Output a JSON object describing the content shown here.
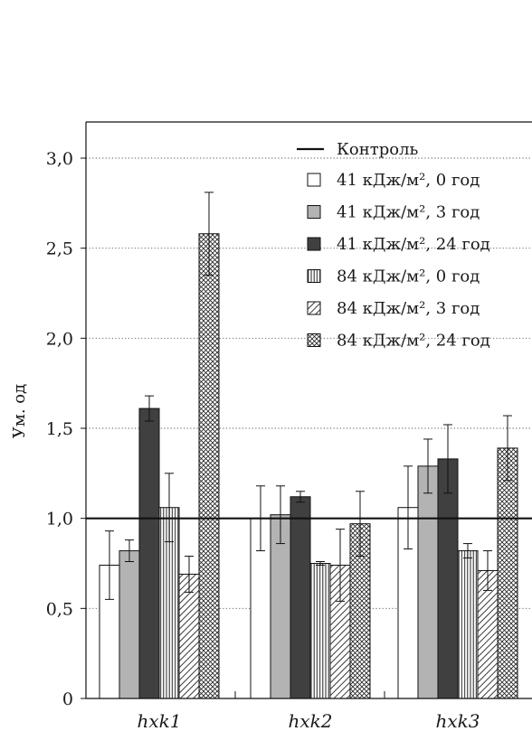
{
  "chart_data": {
    "type": "bar",
    "ylabel": "Ум. од",
    "ylim": [
      0,
      3.0
    ],
    "yticks": [
      "0",
      "0,5",
      "1,0",
      "1,5",
      "2,0",
      "2,5",
      "3,0"
    ],
    "grid": "horizontal dotted",
    "legend_position": "top-right",
    "categories": [
      "hxk1",
      "hxk2",
      "hxk3"
    ],
    "control": {
      "name": "Контроль",
      "value": 1.0
    },
    "series": [
      {
        "name": "41 кДж/м², 0 год",
        "pattern": "white",
        "values": [
          0.74,
          1.0,
          1.06
        ],
        "errors": [
          0.19,
          0.18,
          0.23
        ]
      },
      {
        "name": "41 кДж/м², 3 год",
        "pattern": "gray",
        "values": [
          0.82,
          1.02,
          1.29
        ],
        "errors": [
          0.06,
          0.16,
          0.15
        ]
      },
      {
        "name": "41 кДж/м², 24 год",
        "pattern": "dark",
        "values": [
          1.61,
          1.12,
          1.33
        ],
        "errors": [
          0.07,
          0.03,
          0.19
        ]
      },
      {
        "name": "84 кДж/м², 0 год",
        "pattern": "vertical-lines",
        "values": [
          1.06,
          0.75,
          0.82
        ],
        "errors": [
          0.19,
          0.01,
          0.04
        ]
      },
      {
        "name": "84 кДж/м², 3 год",
        "pattern": "diagonal-lines",
        "values": [
          0.69,
          0.74,
          0.71
        ],
        "errors": [
          0.1,
          0.2,
          0.11
        ]
      },
      {
        "name": "84 кДж/м², 24 год",
        "pattern": "crosshatch",
        "values": [
          2.58,
          0.97,
          1.39
        ],
        "errors": [
          0.23,
          0.18,
          0.18
        ]
      }
    ]
  }
}
